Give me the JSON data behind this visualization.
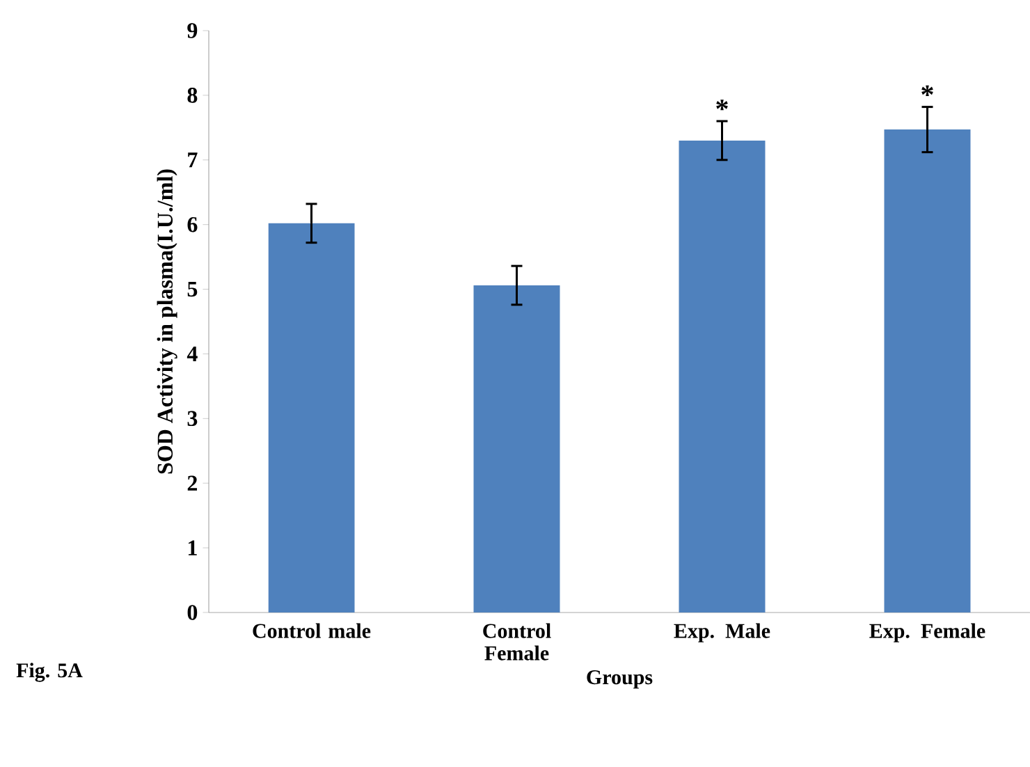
{
  "chart_data": {
    "type": "bar",
    "categories": [
      "Control male",
      "Control Female",
      "Exp. Male",
      "Exp. Female"
    ],
    "values": [
      6.02,
      5.06,
      7.3,
      7.47
    ],
    "errors": [
      0.3,
      0.3,
      0.3,
      0.35
    ],
    "color": "#4f81bd",
    "xlabel": "Groups",
    "ylabel": "SOD Activity in plasma(I.U./ml)",
    "ylim": [
      0,
      9
    ],
    "yticks": [
      0,
      1,
      2,
      3,
      4,
      5,
      6,
      7,
      8,
      9
    ],
    "grid": false,
    "annotations": [
      {
        "text": "*",
        "x": "Exp. Male",
        "y": 7.3
      },
      {
        "text": "*",
        "x": "Exp. Female",
        "y": 7.47
      },
      "Fig. 5A"
    ]
  }
}
